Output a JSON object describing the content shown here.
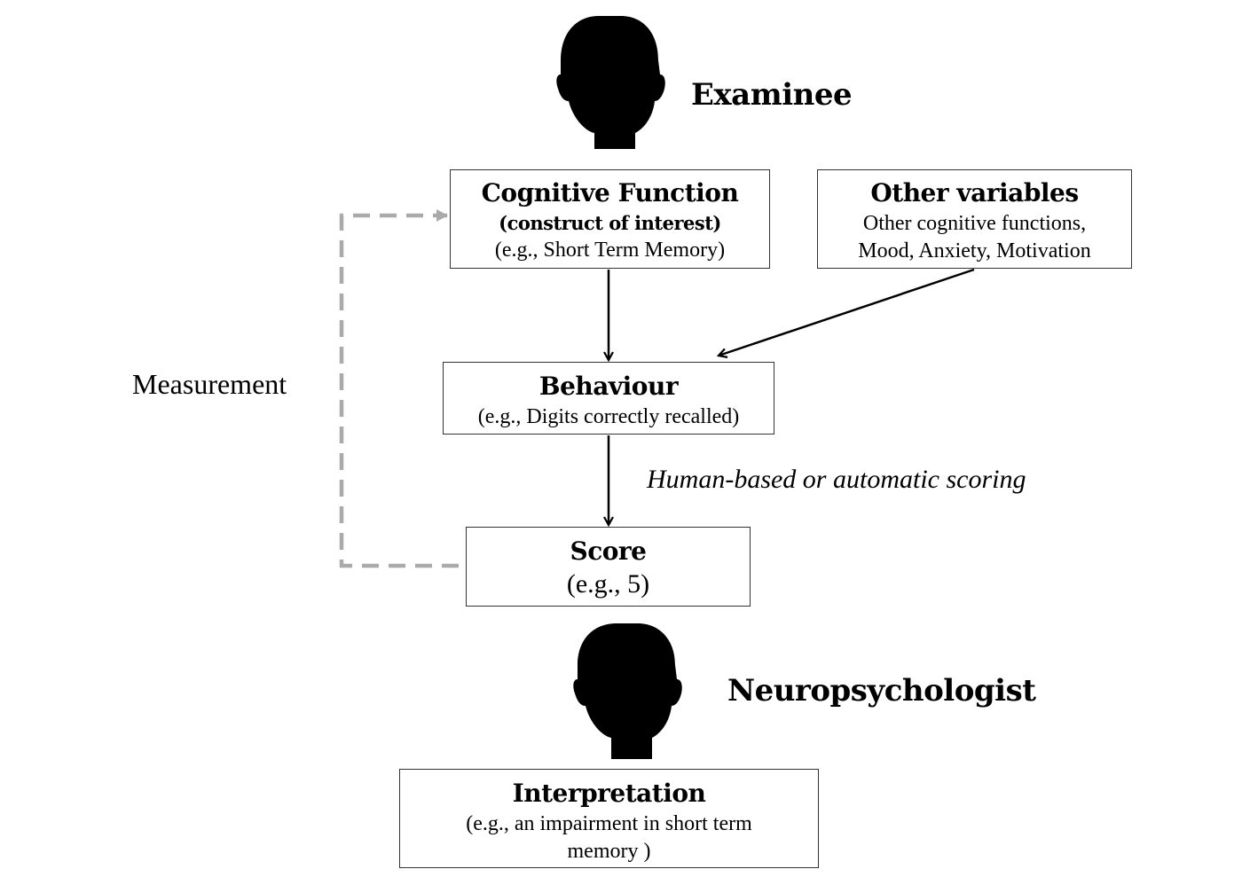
{
  "actors": {
    "examinee": "Examinee",
    "neuropsychologist": "Neuropsychologist"
  },
  "boxes": {
    "cognitive_function": {
      "title": "Cognitive Function",
      "subtitle": "(construct of interest)",
      "example": "(e.g., Short Term Memory)"
    },
    "other_variables": {
      "title": "Other variables",
      "line1": "Other cognitive functions,",
      "line2": "Mood, Anxiety, Motivation"
    },
    "behaviour": {
      "title": "Behaviour",
      "example": "(e.g., Digits correctly recalled)"
    },
    "score": {
      "title": "Score",
      "example": "(e.g., 5)"
    },
    "interpretation": {
      "title": "Interpretation",
      "line1": "(e.g., an impairment in short term",
      "line2": "memory )"
    }
  },
  "labels": {
    "measurement": "Measurement",
    "scoring": "Human-based or automatic scoring"
  },
  "icons": {
    "examinee": "head-silhouette-icon",
    "neuropsychologist": "head-silhouette-icon"
  },
  "colors": {
    "ink": "#000000",
    "box_border": "#333333",
    "measurement_arrow": "#aaaaaa"
  }
}
